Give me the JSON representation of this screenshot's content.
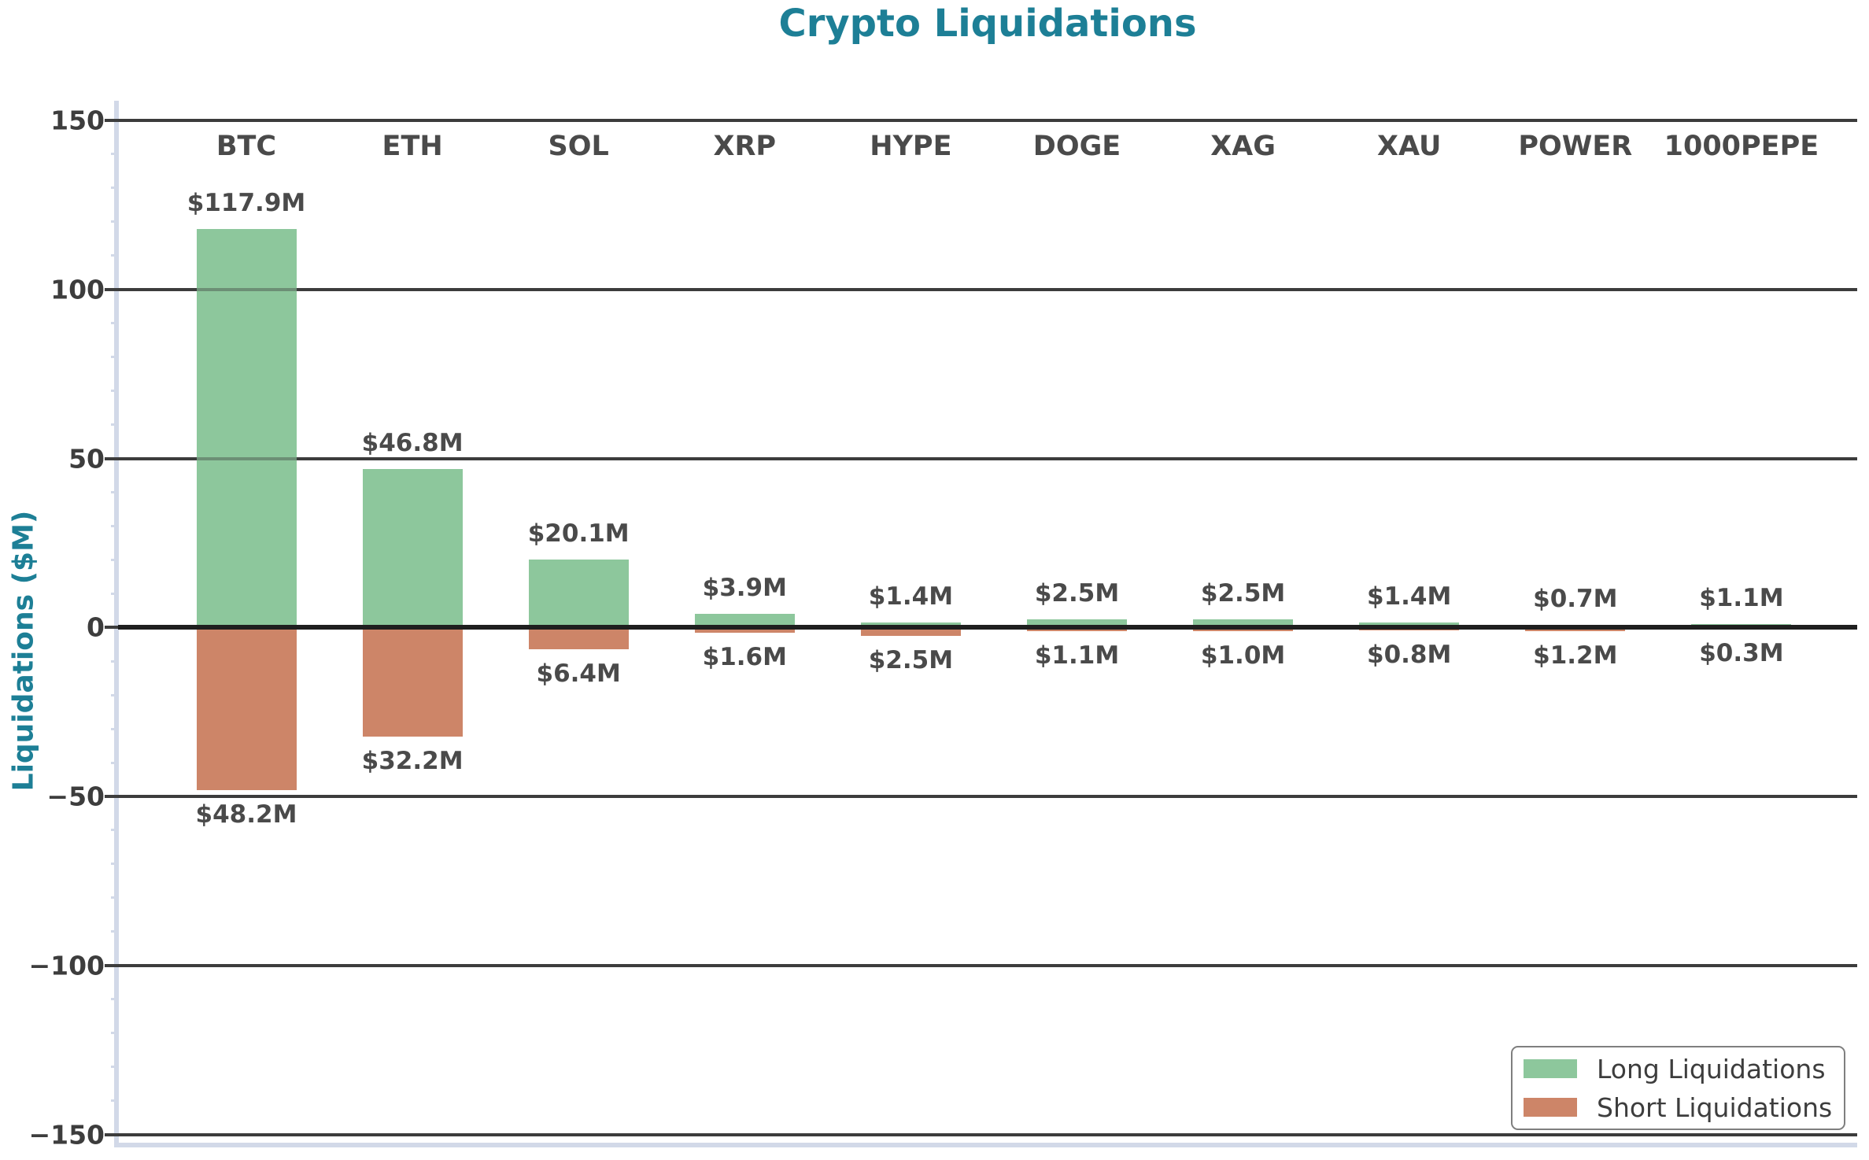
{
  "chart_data": {
    "type": "bar",
    "title": "Crypto Liquidations",
    "ylabel": "Liquidations ($M)",
    "xlabel": "",
    "categories": [
      "BTC",
      "ETH",
      "SOL",
      "XRP",
      "HYPE",
      "DOGE",
      "XAG",
      "XAU",
      "POWER",
      "1000PEPE"
    ],
    "series": [
      {
        "name": "Long Liquidations",
        "color": "#8dc79c",
        "values": [
          117.9,
          46.8,
          20.1,
          3.9,
          1.4,
          2.5,
          2.5,
          1.4,
          0.7,
          1.1
        ],
        "labels": [
          "$117.9M",
          "$46.8M",
          "$20.1M",
          "$3.9M",
          "$1.4M",
          "$2.5M",
          "$2.5M",
          "$1.4M",
          "$0.7M",
          "$1.1M"
        ]
      },
      {
        "name": "Short Liquidations",
        "color": "#cd8568",
        "values": [
          48.2,
          32.2,
          6.4,
          1.6,
          2.5,
          1.1,
          1.0,
          0.8,
          1.2,
          0.3
        ],
        "labels": [
          "$48.2M",
          "$32.2M",
          "$6.4M",
          "$1.6M",
          "$2.5M",
          "$1.1M",
          "$1.0M",
          "$0.8M",
          "$1.2M",
          "$0.3M"
        ]
      }
    ],
    "short_series_direction": "negative",
    "ylim": [
      -150,
      150
    ],
    "y_ticks": [
      150,
      100,
      50,
      0,
      -50,
      -100,
      -150
    ],
    "y_tick_labels": [
      "150",
      "100",
      "50",
      "0",
      "−50",
      "−100",
      "−150"
    ],
    "minor_tick_step": 10,
    "grid": true,
    "legend_position": "lower right",
    "colors": {
      "title": "#1d7f96",
      "axis_label": "#1d7f96",
      "tick_label": "#3d3d3d",
      "gridline": "#3d3d3d",
      "zero_line": "#1f1f1f",
      "spine": "#d2d9e8",
      "category_label": "#4a4a4a",
      "bar_label": "#4a4a4a",
      "legend_text": "#3d3d3d",
      "legend_border": "#7f7f7f",
      "background": "#ffffff"
    }
  }
}
